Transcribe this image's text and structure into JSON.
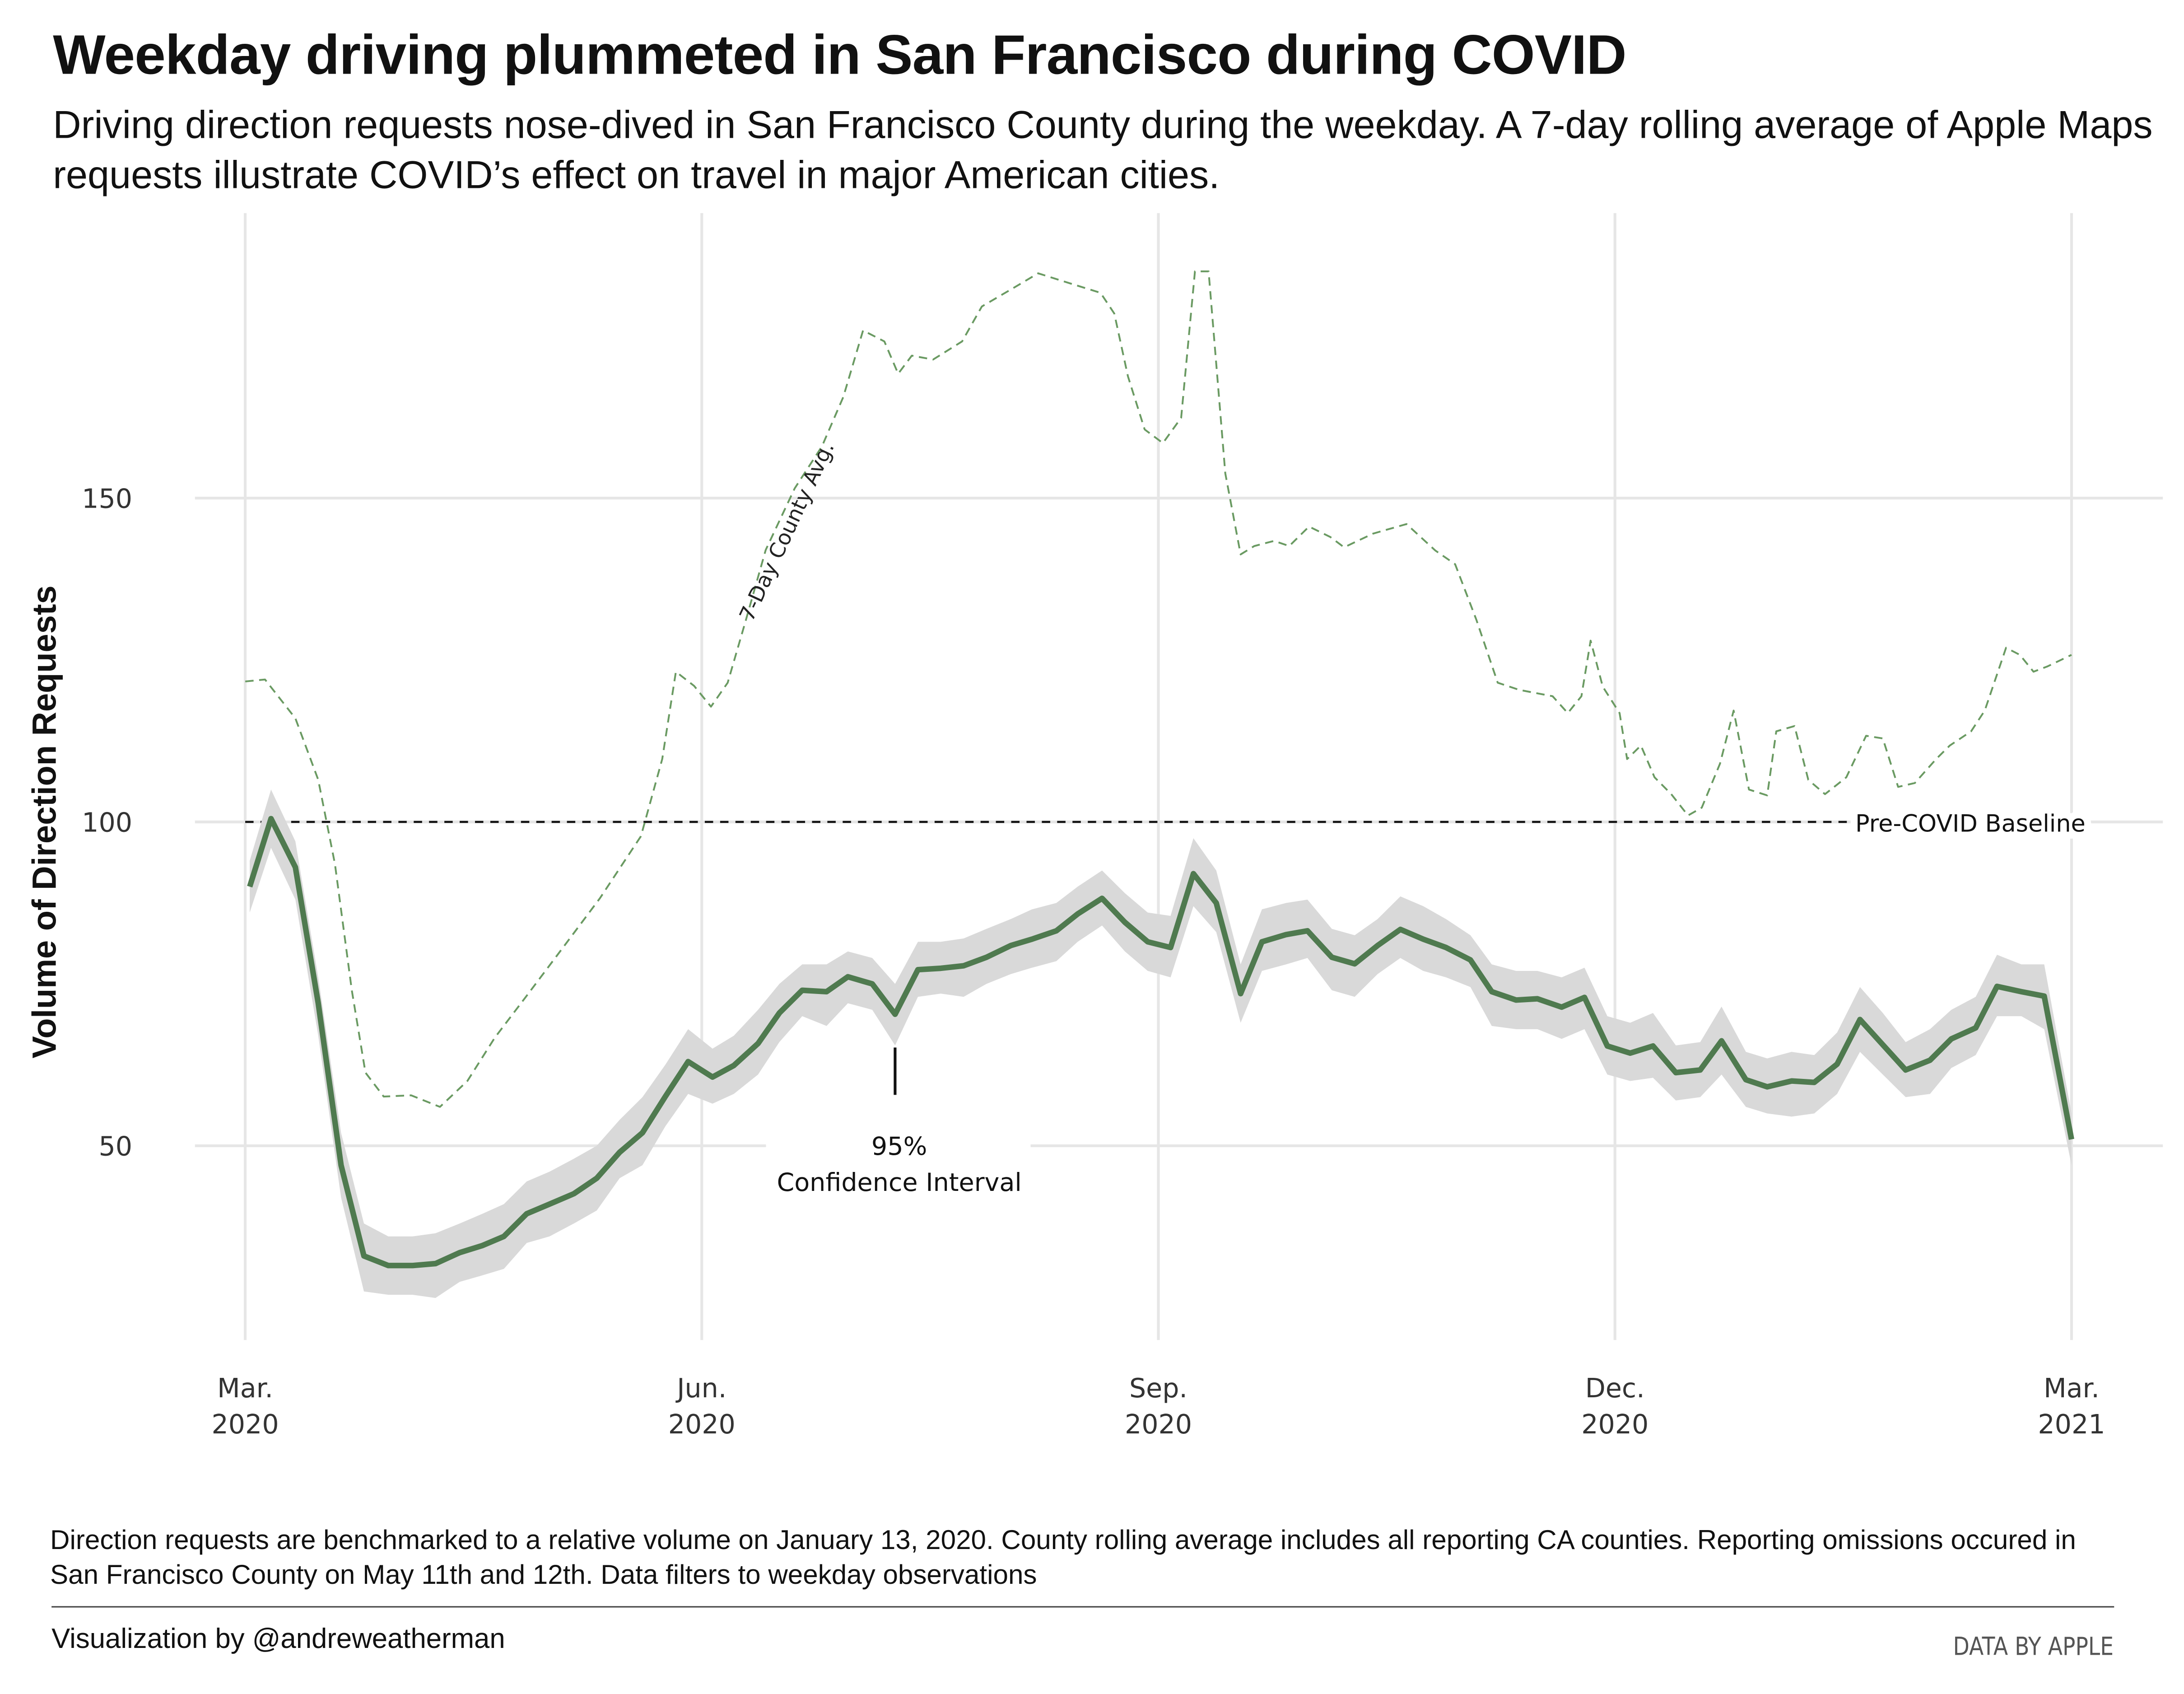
{
  "chart_data": {
    "type": "line",
    "title": "Weekday driving plummeted in San Francisco during COVID",
    "subtitle": "Driving direction requests nose-dived in San Francisco County during the weekday. A 7-day rolling average of Apple Maps requests illustrate COVID’s effect on travel in major American cities.",
    "ylabel": "Volume of Direction Requests",
    "note": "Direction requests are benchmarked to a relative volume on January 13, 2020. County rolling average includes all reporting CA counties. Reporting omissions occured in San Francisco County on May 11th and 12th. Data filters to weekday observations",
    "credit": "Visualization by @andreweatherman",
    "source": "DATA BY APPLE",
    "xlim": [
      -0.33,
      12.6
    ],
    "xticks": [
      {
        "value": 0,
        "label": [
          "Mar.",
          "2020"
        ]
      },
      {
        "value": 3,
        "label": [
          "Jun.",
          "2020"
        ]
      },
      {
        "value": 6,
        "label": [
          "Sep.",
          "2020"
        ]
      },
      {
        "value": 9,
        "label": [
          "Dec.",
          "2020"
        ]
      },
      {
        "value": 12,
        "label": [
          "Mar.",
          "2021"
        ]
      }
    ],
    "ylim": [
      20,
      194
    ],
    "yticks": [
      50,
      100,
      150
    ],
    "grid": true,
    "baseline": {
      "value": 100,
      "label": "Pre-COVID Baseline"
    },
    "series": [
      {
        "name": "7-Day County Avg.",
        "color": "#6a9a62",
        "dashed": true,
        "x": [
          0,
          0.13,
          0.33,
          0.48,
          0.59,
          0.7,
          0.79,
          0.91,
          1.09,
          1.28,
          1.46,
          1.64,
          1.87,
          2.1,
          2.33,
          2.6,
          2.74,
          2.83,
          2.95,
          3.06,
          3.17,
          3.29,
          3.42,
          3.61,
          3.79,
          3.93,
          4.06,
          4.2,
          4.29,
          4.38,
          4.52,
          4.71,
          4.84,
          5.03,
          5.21,
          5.44,
          5.62,
          5.71,
          5.8,
          5.91,
          6.03,
          6.15,
          6.24,
          6.33,
          6.44,
          6.54,
          6.63,
          6.76,
          6.86,
          6.99,
          7.13,
          7.22,
          7.41,
          7.63,
          7.82,
          7.95,
          8.09,
          8.23,
          8.37,
          8.46,
          8.59,
          8.69,
          8.78,
          8.84,
          8.92,
          9.03,
          9.08,
          9.17,
          9.26,
          9.37,
          9.48,
          9.57,
          9.69,
          9.78,
          9.88,
          10.0,
          10.06,
          10.18,
          10.27,
          10.38,
          10.52,
          10.65,
          10.76,
          10.86,
          10.97,
          11.11,
          11.2,
          11.34,
          11.43,
          11.57,
          11.66,
          11.75,
          11.84,
          12.0
        ],
        "values": [
          121.7,
          122,
          116,
          106.5,
          93.5,
          74,
          61.3,
          57.6,
          57.8,
          56,
          60,
          66.7,
          73.8,
          81,
          88.2,
          97.8,
          109.7,
          123.2,
          121,
          117.8,
          121.5,
          131.2,
          142,
          151.5,
          158,
          165.6,
          175.9,
          174.2,
          169.2,
          172,
          171.4,
          174.2,
          179.6,
          182.2,
          184.7,
          183,
          181.7,
          178.5,
          168.8,
          160.6,
          158.5,
          162.4,
          185,
          185,
          153.8,
          141.3,
          142.6,
          143.4,
          142.6,
          145.6,
          144,
          142.4,
          144.5,
          146,
          141.9,
          139.8,
          131.2,
          121.5,
          120.4,
          120,
          119.4,
          116.8,
          119.4,
          128,
          120.9,
          116.8,
          109.7,
          111.8,
          106.9,
          104.3,
          101,
          102.2,
          109,
          117.2,
          105,
          104.1,
          114,
          114.8,
          106.5,
          104.3,
          106.9,
          113.3,
          112.9,
          105.4,
          106,
          109.7,
          111.8,
          114,
          117.2,
          126.9,
          125.8,
          123.2,
          124,
          125.8
        ]
      },
      {
        "color": "#4f7a4f",
        "ci_color": "#d9d9d9",
        "ci_label": [
          "95%",
          "Confidence Interval"
        ],
        "x": [
          0.03,
          0.17,
          0.33,
          0.48,
          0.63,
          0.78,
          0.94,
          1.1,
          1.25,
          1.41,
          1.56,
          1.7,
          1.85,
          2.0,
          2.16,
          2.31,
          2.46,
          2.61,
          2.76,
          2.91,
          3.07,
          3.21,
          3.37,
          3.51,
          3.66,
          3.82,
          3.96,
          4.12,
          4.27,
          4.42,
          4.57,
          4.72,
          4.87,
          5.03,
          5.17,
          5.33,
          5.47,
          5.63,
          5.78,
          5.93,
          6.08,
          6.23,
          6.38,
          6.54,
          6.68,
          6.84,
          6.98,
          7.14,
          7.29,
          7.44,
          7.59,
          7.74,
          7.89,
          8.05,
          8.19,
          8.35,
          8.49,
          8.65,
          8.8,
          8.95,
          9.1,
          9.25,
          9.4,
          9.56,
          9.7,
          9.86,
          10.0,
          10.16,
          10.31,
          10.46,
          10.61,
          10.76,
          10.91,
          11.07,
          11.21,
          11.37,
          11.51,
          11.67,
          11.82,
          12.0
        ],
        "values": [
          90,
          100.5,
          93,
          72,
          47,
          33,
          31.5,
          31.5,
          31.8,
          33.5,
          34.6,
          36,
          39.5,
          41,
          42.6,
          45,
          49,
          52,
          57.6,
          63,
          60.6,
          62.4,
          65.8,
          70.5,
          74,
          73.8,
          76.1,
          75,
          70.3,
          77.2,
          77.4,
          77.8,
          79.1,
          80.9,
          81.9,
          83.2,
          85.8,
          88.2,
          84.5,
          81.5,
          80.6,
          92,
          87.5,
          73.5,
          81.5,
          82.6,
          83.2,
          79.1,
          78.1,
          80.9,
          83.4,
          81.9,
          80.6,
          78.7,
          73.8,
          72.5,
          72.7,
          71.4,
          72.9,
          65.4,
          64.3,
          65.4,
          61.3,
          61.7,
          66.2,
          60.2,
          59.1,
          60,
          59.8,
          62.6,
          69.5,
          65.6,
          61.7,
          63.2,
          66.5,
          68.2,
          74.6,
          73.8,
          73.1,
          51
        ],
        "ci_upper": [
          94,
          105,
          97,
          76,
          52,
          38,
          36,
          36,
          36.5,
          38,
          39.5,
          41,
          44.5,
          46,
          48,
          50,
          54,
          57.5,
          62.5,
          68,
          65,
          67,
          71,
          75,
          78,
          78,
          80,
          79,
          75,
          81.5,
          81.5,
          82,
          83.5,
          85,
          86.5,
          87.5,
          90,
          92.5,
          89,
          86,
          85.5,
          97.5,
          92.5,
          78,
          86.5,
          87.5,
          88,
          83.5,
          82.5,
          85,
          88.5,
          87,
          85,
          82.5,
          78,
          77,
          77,
          76,
          77.5,
          70,
          69,
          70.5,
          65.5,
          66,
          71.5,
          64.5,
          63.5,
          64.5,
          64,
          67.5,
          74.5,
          70.5,
          66,
          68,
          71,
          73,
          79.5,
          78,
          78,
          55
        ],
        "ci_lower": [
          86,
          96,
          88,
          67,
          42,
          27.5,
          27,
          27,
          26.5,
          29,
          30,
          31,
          35,
          36,
          38,
          40,
          45,
          47,
          53,
          58,
          56.5,
          58,
          61,
          66,
          70,
          68.5,
          72,
          71,
          65.5,
          73,
          73.5,
          73,
          75,
          76.5,
          77.5,
          78.5,
          81.5,
          84,
          80,
          77,
          76,
          87,
          83,
          69,
          77,
          78,
          79,
          74,
          73,
          76.5,
          79,
          77,
          76,
          74.5,
          68.5,
          68,
          68,
          66.5,
          68,
          61,
          60,
          60.5,
          57,
          57.5,
          61,
          56,
          55,
          54.5,
          55,
          58,
          64.5,
          61,
          57.5,
          58,
          62,
          64,
          70,
          70,
          68,
          47
        ]
      }
    ]
  }
}
